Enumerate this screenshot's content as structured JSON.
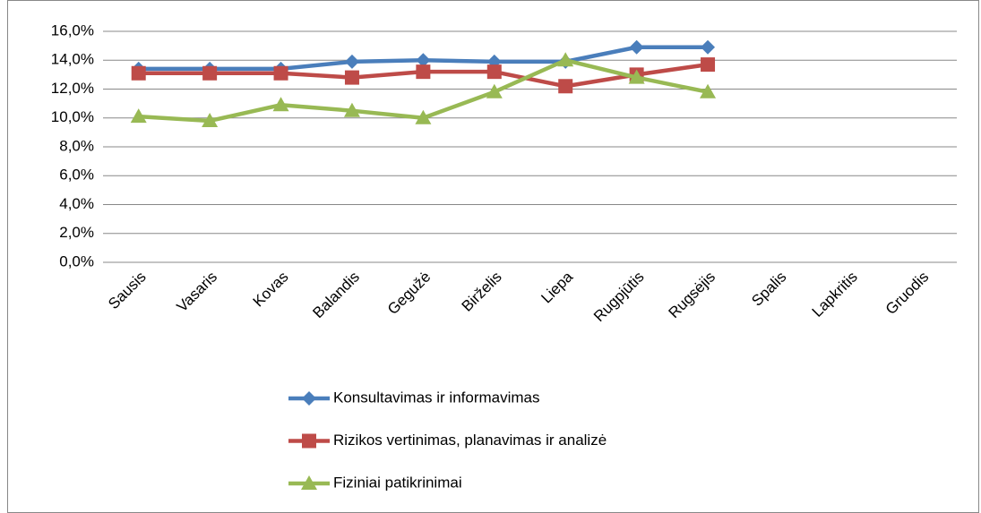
{
  "chart_data": {
    "type": "line",
    "categories": [
      "Sausis",
      "Vasaris",
      "Kovas",
      "Balandis",
      "Gegužė",
      "Birželis",
      "Liepa",
      "Rugpjūtis",
      "Rugsėjis",
      "Spalis",
      "Lapkritis",
      "Gruodis"
    ],
    "series": [
      {
        "name": "Konsultavimas ir informavimas",
        "color": "#4a7ebb",
        "marker": "diamond",
        "values": [
          13.4,
          13.4,
          13.4,
          13.9,
          14.0,
          13.9,
          13.9,
          14.9,
          14.9,
          null,
          null,
          null
        ]
      },
      {
        "name": "Rizikos vertinimas, planavimas ir analizė",
        "color": "#be4b48",
        "marker": "square",
        "values": [
          13.1,
          13.1,
          13.1,
          12.8,
          13.2,
          13.2,
          12.2,
          13.0,
          13.7,
          null,
          null,
          null
        ]
      },
      {
        "name": "Fiziniai patikrinimai",
        "color": "#98b954",
        "marker": "triangle",
        "values": [
          10.1,
          9.8,
          10.9,
          10.5,
          10.0,
          11.8,
          14.0,
          12.8,
          11.8,
          null,
          null,
          null
        ]
      }
    ],
    "ylim": [
      0,
      16
    ],
    "yticks": [
      {
        "value": 0,
        "label": "0,0%"
      },
      {
        "value": 2,
        "label": "2,0%"
      },
      {
        "value": 4,
        "label": "4,0%"
      },
      {
        "value": 6,
        "label": "6,0%"
      },
      {
        "value": 8,
        "label": "8,0%"
      },
      {
        "value": 10,
        "label": "10,0%"
      },
      {
        "value": 12,
        "label": "12,0%"
      },
      {
        "value": 14,
        "label": "14,0%"
      },
      {
        "value": 16,
        "label": "16,0%"
      }
    ],
    "grid": true,
    "legend": "bottom"
  }
}
